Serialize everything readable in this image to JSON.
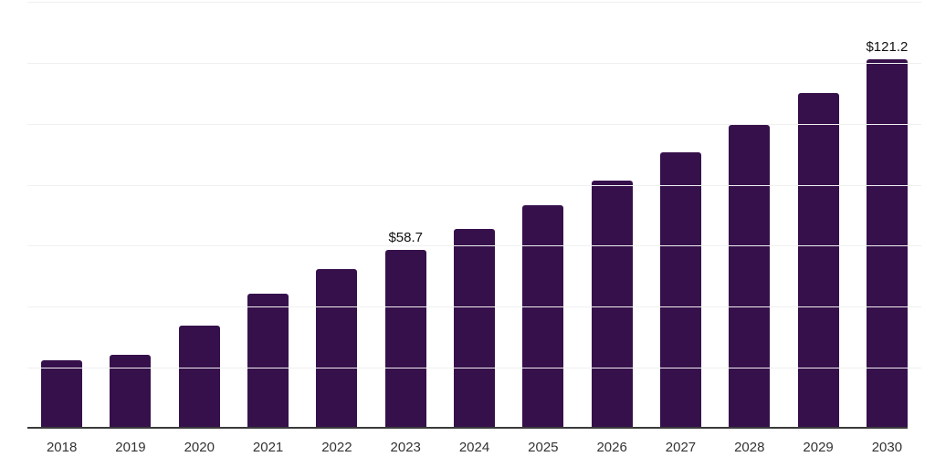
{
  "chart_data": {
    "type": "bar",
    "title": "",
    "xlabel": "",
    "ylabel": "",
    "categories": [
      "2018",
      "2019",
      "2020",
      "2021",
      "2022",
      "2023",
      "2024",
      "2025",
      "2026",
      "2027",
      "2028",
      "2029",
      "2030"
    ],
    "values": [
      22.3,
      24.1,
      33.9,
      44.2,
      52.3,
      58.7,
      65.6,
      73.4,
      81.5,
      90.5,
      99.7,
      110.2,
      121.2
    ],
    "data_labels": {
      "2023": "$58.7",
      "2030": "$121.2"
    },
    "ylim": [
      0,
      140
    ],
    "gridline_step": 20,
    "grid": "horizontal",
    "legend": "none",
    "colors": {
      "bar": "#36104B",
      "gridline": "#f0f0f0",
      "axis_line": "#3a3a3a",
      "tick_label": "#333333",
      "data_label": "#111111",
      "background": "#ffffff"
    }
  }
}
